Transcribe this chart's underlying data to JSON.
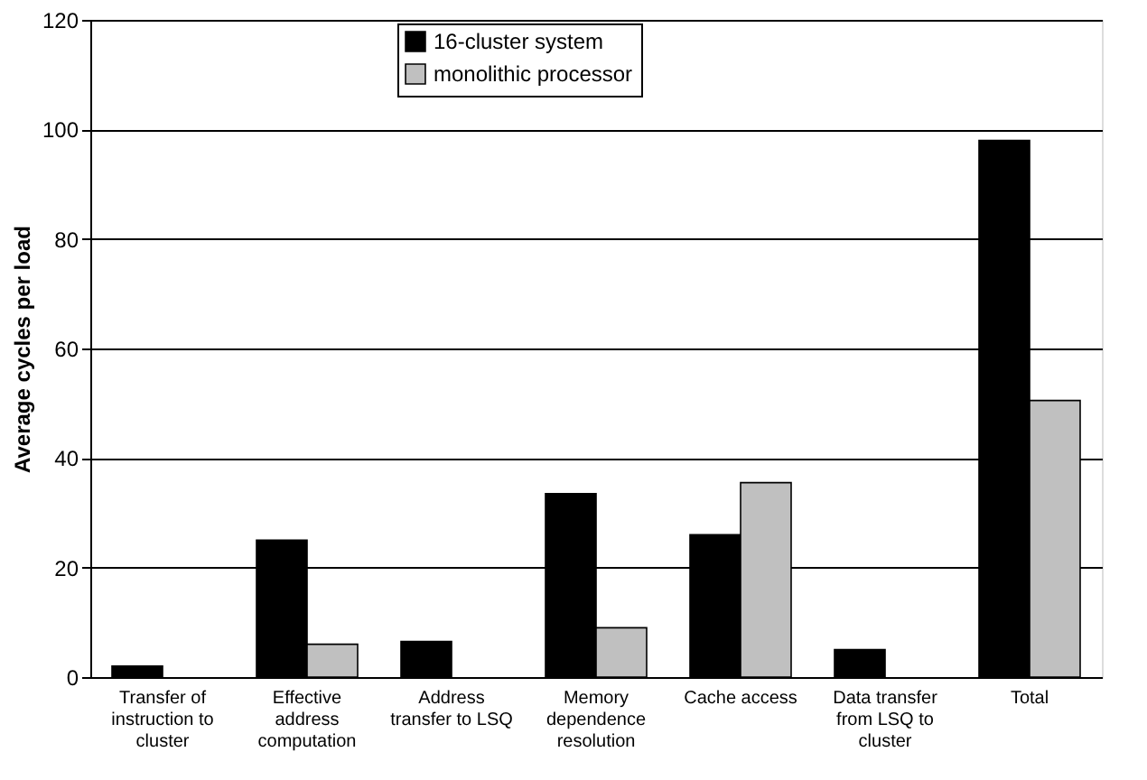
{
  "chart_data": {
    "type": "bar",
    "categories": [
      "Transfer of instruction to cluster",
      "Effective address computation",
      "Address transfer to LSQ",
      "Memory dependence resolution",
      "Cache access",
      "Data transfer from LSQ to cluster",
      "Total"
    ],
    "series": [
      {
        "name": "16-cluster system",
        "color": "#000000",
        "values": [
          2,
          25,
          6.5,
          33.5,
          26,
          5,
          98
        ]
      },
      {
        "name": "monolithic processor",
        "color": "#c0c0c0",
        "values": [
          null,
          6,
          null,
          9,
          35.5,
          null,
          50.5
        ]
      }
    ],
    "ylabel": "Average cycles per load",
    "ylim": [
      0,
      120
    ],
    "yticks": [
      0,
      20,
      40,
      60,
      80,
      100,
      120
    ],
    "grid": "y",
    "legend": "top"
  }
}
